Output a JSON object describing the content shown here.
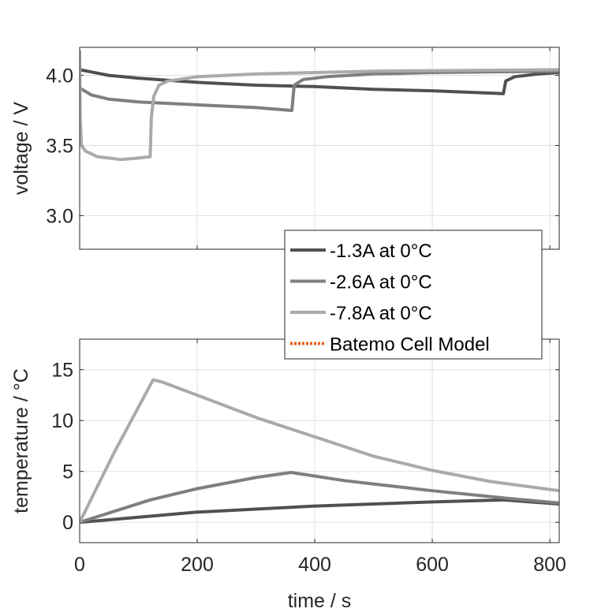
{
  "chart_data": [
    {
      "type": "line",
      "title": "",
      "xlabel": "",
      "ylabel": "voltage / V",
      "xlim": [
        0,
        816
      ],
      "ylim": [
        2.76,
        4.2
      ],
      "xticks": [
        0,
        200,
        400,
        600,
        800
      ],
      "yticks": [
        3.0,
        3.5,
        4.0
      ],
      "ytick_labels": [
        "3.0",
        "3.5",
        "4.0"
      ],
      "grid": true,
      "series": [
        {
          "name": "-1.3A at 0°C",
          "color": "#505050",
          "x": [
            0,
            50,
            100,
            200,
            300,
            400,
            500,
            600,
            720,
            721,
            725,
            740,
            780,
            816
          ],
          "y": [
            4.04,
            4.0,
            3.98,
            3.95,
            3.93,
            3.92,
            3.9,
            3.89,
            3.87,
            3.87,
            3.96,
            3.99,
            4.01,
            4.02
          ]
        },
        {
          "name": "-2.6A at 0°C",
          "color": "#7f7f7f",
          "x": [
            0,
            20,
            50,
            100,
            200,
            300,
            360,
            361,
            365,
            380,
            420,
            500,
            600,
            816
          ],
          "y": [
            3.91,
            3.86,
            3.83,
            3.81,
            3.79,
            3.77,
            3.75,
            3.75,
            3.93,
            3.97,
            3.99,
            4.01,
            4.02,
            4.03
          ]
        },
        {
          "name": "-7.8A at 0°C",
          "color": "#aaaaaa",
          "x": [
            0,
            1,
            3,
            10,
            30,
            70,
            100,
            120,
            122,
            126,
            135,
            150,
            200,
            300,
            400,
            500,
            816
          ],
          "y": [
            4.18,
            3.7,
            3.5,
            3.46,
            3.42,
            3.4,
            3.41,
            3.42,
            3.7,
            3.85,
            3.93,
            3.96,
            3.99,
            4.01,
            4.02,
            4.03,
            4.04
          ]
        }
      ]
    },
    {
      "type": "line",
      "title": "",
      "xlabel": "time / s",
      "ylabel": "temperature / °C",
      "xlim": [
        0,
        816
      ],
      "ylim": [
        -2,
        18
      ],
      "xticks": [
        0,
        200,
        400,
        600,
        800
      ],
      "xtick_labels": [
        "0",
        "200",
        "400",
        "600",
        "800"
      ],
      "yticks": [
        0,
        5,
        10,
        15
      ],
      "ytick_labels": [
        "0",
        "5",
        "10",
        "15"
      ],
      "grid": true,
      "series": [
        {
          "name": "-1.3A at 0°C",
          "color": "#505050",
          "x": [
            0,
            200,
            400,
            600,
            720,
            816
          ],
          "y": [
            0,
            1.0,
            1.6,
            2.0,
            2.2,
            1.8
          ]
        },
        {
          "name": "-2.6A at 0°C",
          "color": "#7f7f7f",
          "x": [
            0,
            120,
            200,
            300,
            360,
            450,
            600,
            720,
            816
          ],
          "y": [
            0,
            2.2,
            3.3,
            4.4,
            4.9,
            4.1,
            3.1,
            2.4,
            1.9
          ]
        },
        {
          "name": "-7.8A at 0°C",
          "color": "#aaaaaa",
          "x": [
            0,
            60,
            125,
            140,
            200,
            300,
            400,
            500,
            600,
            700,
            816
          ],
          "y": [
            0,
            7,
            14,
            13.8,
            12.5,
            10.3,
            8.4,
            6.5,
            5.1,
            4.0,
            3.1
          ]
        }
      ]
    }
  ],
  "legend": {
    "placement": "center-right",
    "entries": [
      {
        "label": "-1.3A at 0°C",
        "color": "#505050",
        "style": "solid"
      },
      {
        "label": "-2.6A at 0°C",
        "color": "#7f7f7f",
        "style": "solid"
      },
      {
        "label": "-7.8A at 0°C",
        "color": "#aaaaaa",
        "style": "solid"
      },
      {
        "label": "Batemo Cell Model",
        "color": "#e8601c",
        "style": "dotted"
      }
    ]
  }
}
